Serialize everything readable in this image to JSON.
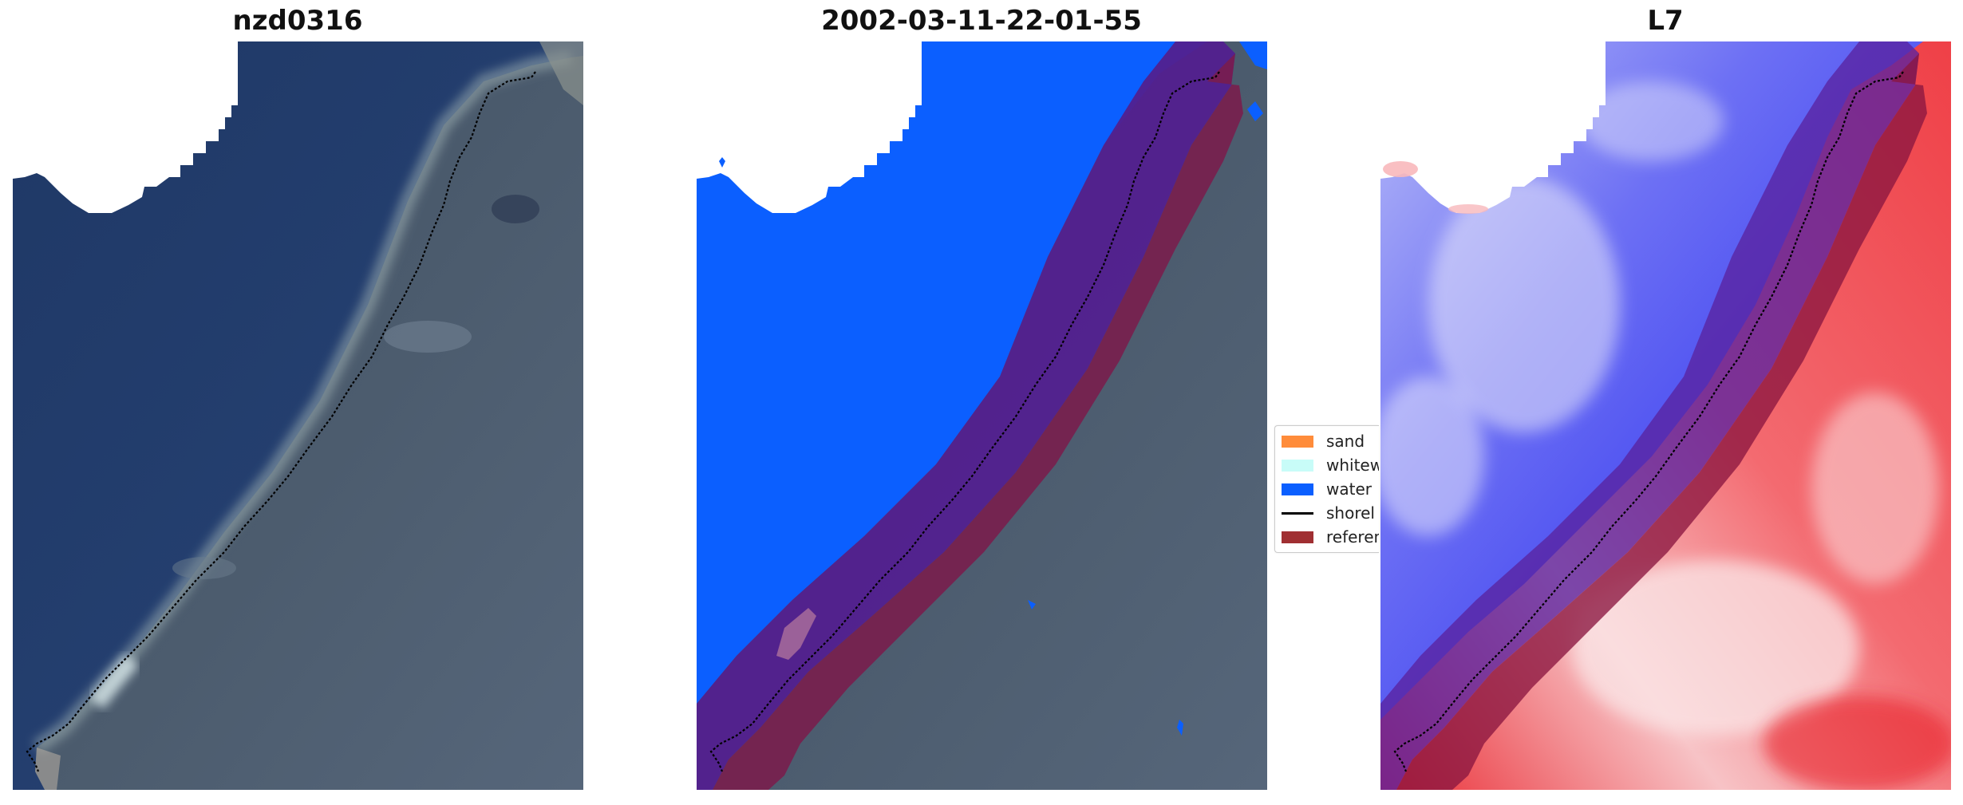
{
  "titles": {
    "left": "nzd0316",
    "middle": "2002-03-11-22-01-55",
    "right": "L7"
  },
  "legend": {
    "items": [
      {
        "label": "sand",
        "color": "#ff8c3a",
        "kind": "patch"
      },
      {
        "label": "whitew",
        "color": "#c8fcf8",
        "kind": "patch"
      },
      {
        "label": "water",
        "color": "#0b5fff",
        "kind": "patch"
      },
      {
        "label": "shorel",
        "color": "#000000",
        "kind": "line"
      },
      {
        "label": "referen",
        "color": "#a02f32",
        "kind": "patch"
      }
    ]
  },
  "colors": {
    "ocean": "#243f6f",
    "land": "#4c5d70",
    "water_class": "#0b5fff",
    "buffer": "#7a1c4c",
    "index_water": "#4b4ff2",
    "index_land": "#ee3d42"
  }
}
